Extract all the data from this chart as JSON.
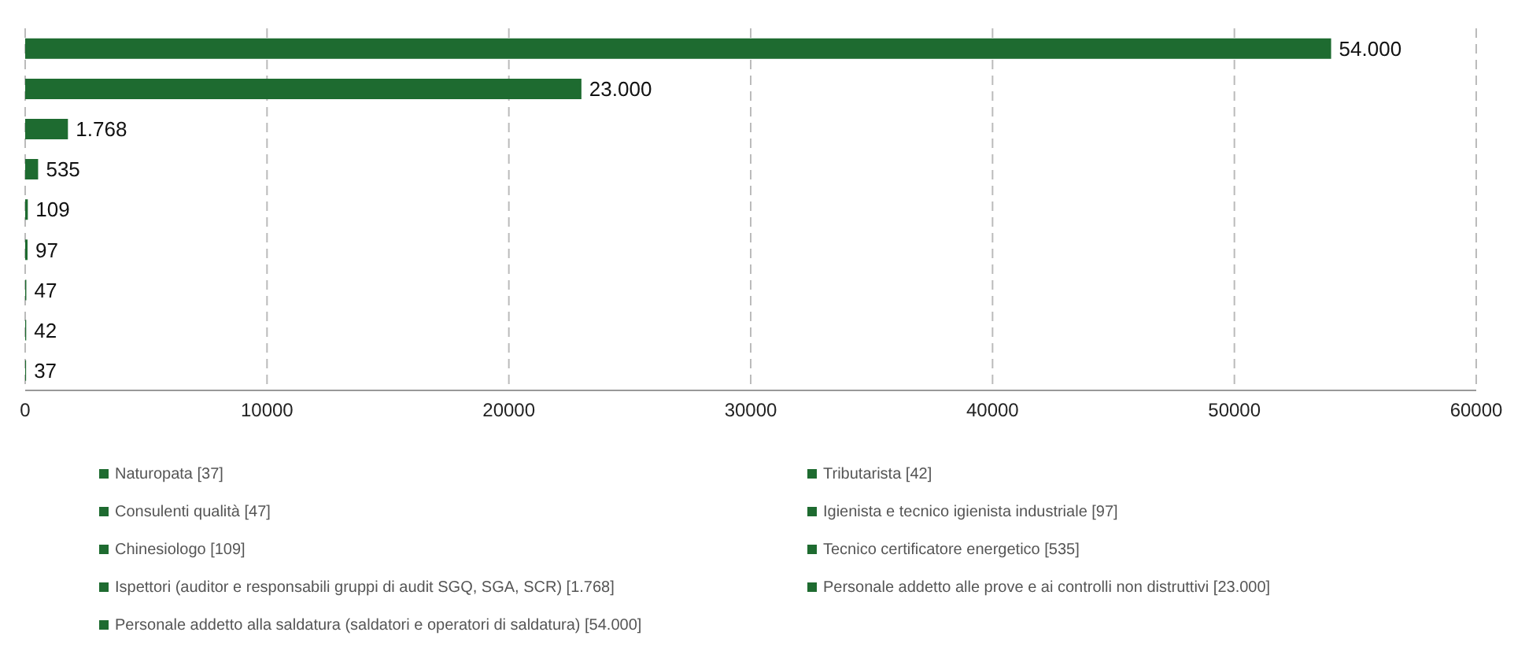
{
  "chart_data": {
    "type": "bar",
    "orientation": "horizontal",
    "stacked": true,
    "categories": [
      null,
      null,
      null,
      null,
      null,
      null,
      null,
      null,
      null
    ],
    "series": [
      {
        "name": "Naturopata [37]",
        "color": "#1e6b30",
        "values": [
          null,
          null,
          null,
          null,
          null,
          null,
          null,
          null,
          37
        ],
        "value_labels": [
          null,
          null,
          null,
          null,
          null,
          null,
          null,
          null,
          "37"
        ]
      },
      {
        "name": "Tributarista [42]",
        "color": "#1e6b30",
        "values": [
          null,
          null,
          null,
          null,
          null,
          null,
          null,
          42,
          null
        ],
        "value_labels": [
          null,
          null,
          null,
          null,
          null,
          null,
          null,
          "42",
          null
        ]
      },
      {
        "name": "Consulenti qualità [47]",
        "color": "#1e6b30",
        "values": [
          null,
          null,
          null,
          null,
          null,
          null,
          47,
          null,
          null
        ],
        "value_labels": [
          null,
          null,
          null,
          null,
          null,
          null,
          "47",
          null,
          null
        ]
      },
      {
        "name": "Igienista e tecnico igienista industriale [97]",
        "color": "#1e6b30",
        "values": [
          null,
          null,
          null,
          null,
          null,
          97,
          null,
          null,
          null
        ],
        "value_labels": [
          null,
          null,
          null,
          null,
          null,
          "97",
          null,
          null,
          null
        ]
      },
      {
        "name": "Chinesiologo [109]",
        "color": "#1e6b30",
        "values": [
          null,
          null,
          null,
          null,
          109,
          null,
          null,
          null,
          null
        ],
        "value_labels": [
          null,
          null,
          null,
          null,
          "109",
          null,
          null,
          null,
          null
        ]
      },
      {
        "name": "Tecnico certificatore energetico [535]",
        "color": "#1e6b30",
        "values": [
          null,
          null,
          null,
          535,
          null,
          null,
          null,
          null,
          null
        ],
        "value_labels": [
          null,
          null,
          null,
          "535",
          null,
          null,
          null,
          null,
          null
        ]
      },
      {
        "name": "Ispettori (auditor e responsabili gruppi di audit SGQ, SGA, SCR) [1.768]",
        "color": "#1e6b30",
        "values": [
          null,
          null,
          1768,
          null,
          null,
          null,
          null,
          null,
          null
        ],
        "value_labels": [
          null,
          null,
          "1.768",
          null,
          null,
          null,
          null,
          null,
          null
        ]
      },
      {
        "name": "Personale addetto alle prove e ai controlli non distruttivi [23.000]",
        "color": "#1e6b30",
        "values": [
          null,
          23000,
          null,
          null,
          null,
          null,
          null,
          null,
          null
        ],
        "value_labels": [
          null,
          "23.000",
          null,
          null,
          null,
          null,
          null,
          null,
          null
        ]
      },
      {
        "name": "Personale addetto alla saldatura (saldatori e operatori di saldatura) [54.000]",
        "color": "#1e6b30",
        "values": [
          54000,
          null,
          null,
          null,
          null,
          null,
          null,
          null,
          null
        ],
        "value_labels": [
          "54.000",
          null,
          null,
          null,
          null,
          null,
          null,
          null,
          null
        ]
      }
    ],
    "xlim": [
      0,
      60000
    ],
    "xticks": [
      0,
      10000,
      20000,
      30000,
      40000,
      50000,
      60000
    ],
    "grid": "x",
    "legend": "bottom",
    "tick_labels": "x"
  }
}
